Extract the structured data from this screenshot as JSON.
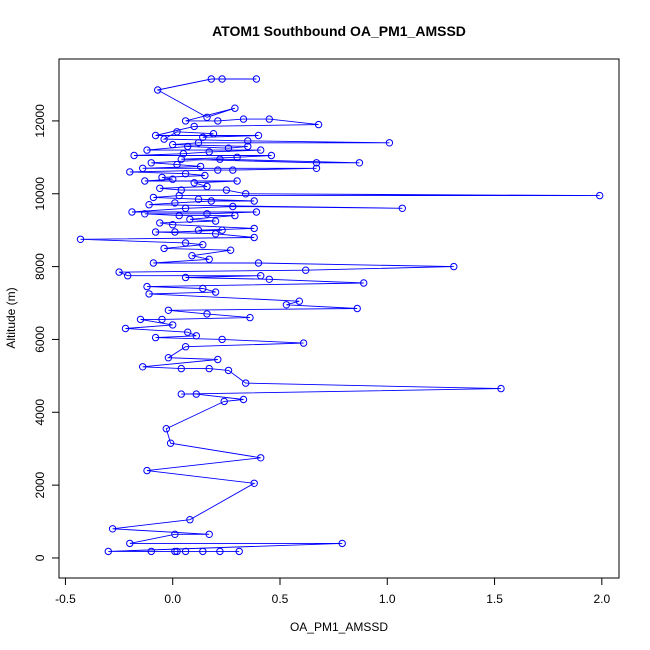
{
  "chart_data": {
    "type": "line",
    "title": "ATOM1 Southbound OA_PM1_AMSSD",
    "xlabel": "OA_PM1_AMSSD",
    "ylabel": "Altitude (m)",
    "xlim": [
      -0.53,
      2.08
    ],
    "ylim": [
      -550,
      13700
    ],
    "x_ticks": [
      -0.5,
      0.0,
      0.5,
      1.0,
      1.5,
      2.0
    ],
    "x_tick_labels": [
      "-0.5",
      "0.0",
      "0.5",
      "1.0",
      "1.5",
      "2.0"
    ],
    "y_ticks": [
      0,
      2000,
      4000,
      6000,
      8000,
      10000,
      12000
    ],
    "y_tick_labels": [
      "0",
      "2000",
      "4000",
      "6000",
      "8000",
      "10000",
      "12000"
    ],
    "markers": "open-circle",
    "grid": false,
    "legend": "none",
    "series": [
      {
        "color": "#0000ff",
        "points": [
          [
            0.39,
            13150
          ],
          [
            0.23,
            13150
          ],
          [
            0.18,
            13150
          ],
          [
            -0.07,
            12850
          ],
          [
            0.16,
            12100
          ],
          [
            0.29,
            12350
          ],
          [
            0.06,
            12000
          ],
          [
            0.21,
            12000
          ],
          [
            0.33,
            12050
          ],
          [
            0.45,
            12050
          ],
          [
            0.68,
            11900
          ],
          [
            0.1,
            11850
          ],
          [
            -0.08,
            11600
          ],
          [
            0.4,
            11600
          ],
          [
            0.14,
            11550
          ],
          [
            0.19,
            11650
          ],
          [
            0.02,
            11700
          ],
          [
            -0.04,
            11500
          ],
          [
            0.35,
            11450
          ],
          [
            1.01,
            11400
          ],
          [
            0.12,
            11400
          ],
          [
            0.0,
            11350
          ],
          [
            0.35,
            11300
          ],
          [
            0.26,
            11250
          ],
          [
            0.07,
            11300
          ],
          [
            -0.12,
            11200
          ],
          [
            0.41,
            11200
          ],
          [
            0.17,
            11150
          ],
          [
            0.05,
            11100
          ],
          [
            -0.18,
            11050
          ],
          [
            0.46,
            11050
          ],
          [
            0.3,
            11000
          ],
          [
            0.04,
            10950
          ],
          [
            0.67,
            10850
          ],
          [
            0.87,
            10850
          ],
          [
            0.22,
            10950
          ],
          [
            -0.1,
            10850
          ],
          [
            0.02,
            10800
          ],
          [
            0.13,
            10750
          ],
          [
            -0.14,
            10700
          ],
          [
            0.67,
            10700
          ],
          [
            0.28,
            10650
          ],
          [
            0.21,
            10650
          ],
          [
            -0.2,
            10600
          ],
          [
            0.06,
            10550
          ],
          [
            0.15,
            10500
          ],
          [
            -0.05,
            10450
          ],
          [
            0.0,
            10400
          ],
          [
            -0.13,
            10350
          ],
          [
            0.3,
            10350
          ],
          [
            0.1,
            10300
          ],
          [
            0.16,
            10200
          ],
          [
            -0.06,
            10150
          ],
          [
            0.04,
            10100
          ],
          [
            0.25,
            10100
          ],
          [
            0.34,
            10000
          ],
          [
            1.99,
            9950
          ],
          [
            0.03,
            9950
          ],
          [
            -0.09,
            9900
          ],
          [
            0.12,
            9850
          ],
          [
            0.38,
            9800
          ],
          [
            0.18,
            9800
          ],
          [
            0.01,
            9750
          ],
          [
            -0.11,
            9700
          ],
          [
            1.07,
            9600
          ],
          [
            0.28,
            9650
          ],
          [
            0.06,
            9600
          ],
          [
            -0.19,
            9500
          ],
          [
            0.39,
            9500
          ],
          [
            0.16,
            9450
          ],
          [
            -0.13,
            9450
          ],
          [
            0.03,
            9400
          ],
          [
            0.29,
            9400
          ],
          [
            0.08,
            9300
          ],
          [
            0.2,
            9250
          ],
          [
            -0.06,
            9200
          ],
          [
            0.0,
            9150
          ],
          [
            0.38,
            9050
          ],
          [
            0.12,
            9000
          ],
          [
            0.23,
            9000
          ],
          [
            0.01,
            8950
          ],
          [
            -0.08,
            8950
          ],
          [
            0.2,
            8900
          ],
          [
            0.38,
            8800
          ],
          [
            -0.43,
            8750
          ],
          [
            0.06,
            8650
          ],
          [
            0.14,
            8600
          ],
          [
            -0.04,
            8500
          ],
          [
            0.27,
            8450
          ],
          [
            0.09,
            8300
          ],
          [
            0.17,
            8200
          ],
          [
            -0.09,
            8100
          ],
          [
            0.4,
            8100
          ],
          [
            1.31,
            8000
          ],
          [
            0.62,
            7900
          ],
          [
            -0.25,
            7850
          ],
          [
            -0.21,
            7750
          ],
          [
            0.41,
            7750
          ],
          [
            0.06,
            7700
          ],
          [
            0.45,
            7650
          ],
          [
            0.89,
            7550
          ],
          [
            -0.12,
            7450
          ],
          [
            0.14,
            7400
          ],
          [
            0.2,
            7300
          ],
          [
            -0.11,
            7250
          ],
          [
            0.59,
            7050
          ],
          [
            0.53,
            6950
          ],
          [
            0.86,
            6850
          ],
          [
            -0.02,
            6800
          ],
          [
            0.16,
            6700
          ],
          [
            0.36,
            6600
          ],
          [
            -0.05,
            6550
          ],
          [
            -0.15,
            6550
          ],
          [
            0.0,
            6400
          ],
          [
            -0.22,
            6300
          ],
          [
            0.07,
            6200
          ],
          [
            0.11,
            6100
          ],
          [
            -0.08,
            6050
          ],
          [
            0.23,
            6000
          ],
          [
            0.61,
            5900
          ],
          [
            0.06,
            5800
          ],
          [
            -0.02,
            5500
          ],
          [
            0.21,
            5450
          ],
          [
            -0.14,
            5250
          ],
          [
            0.04,
            5200
          ],
          [
            0.17,
            5200
          ],
          [
            0.26,
            5150
          ],
          [
            0.34,
            4800
          ],
          [
            1.53,
            4650
          ],
          [
            0.04,
            4500
          ],
          [
            0.11,
            4500
          ],
          [
            0.33,
            4350
          ],
          [
            0.24,
            4300
          ],
          [
            -0.03,
            3550
          ],
          [
            -0.01,
            3150
          ],
          [
            0.41,
            2750
          ],
          [
            -0.12,
            2400
          ],
          [
            0.38,
            2050
          ],
          [
            0.08,
            1050
          ],
          [
            -0.28,
            800
          ],
          [
            0.17,
            650
          ],
          [
            0.01,
            650
          ],
          [
            -0.2,
            400
          ],
          [
            0.79,
            400
          ],
          [
            -0.3,
            180
          ],
          [
            -0.1,
            180
          ],
          [
            0.01,
            180
          ],
          [
            0.02,
            180
          ],
          [
            0.06,
            180
          ],
          [
            0.14,
            180
          ],
          [
            0.22,
            180
          ],
          [
            0.31,
            180
          ]
        ]
      }
    ]
  }
}
